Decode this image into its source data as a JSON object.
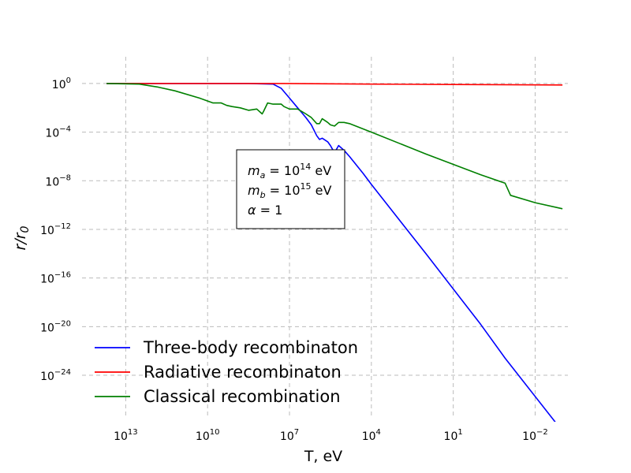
{
  "chart_data": {
    "type": "line",
    "title": "",
    "xlabel": "T, eV",
    "ylabel": "r/r0",
    "x_scale": "log-reversed",
    "y_scale": "log",
    "xlim_log10": [
      14.6,
      -3.2
    ],
    "ylim_log10": [
      -27.5,
      2.2
    ],
    "x_ticks": [
      {
        "log10": 13,
        "base": "10",
        "exp": "13"
      },
      {
        "log10": 10,
        "base": "10",
        "exp": "10"
      },
      {
        "log10": 7,
        "base": "10",
        "exp": "7"
      },
      {
        "log10": 4,
        "base": "10",
        "exp": "4"
      },
      {
        "log10": 1,
        "base": "10",
        "exp": "1"
      },
      {
        "log10": -2,
        "base": "10",
        "exp": "−2"
      }
    ],
    "y_ticks": [
      {
        "log10": 0,
        "base": "10",
        "exp": "0"
      },
      {
        "log10": -4,
        "base": "10",
        "exp": "−4"
      },
      {
        "log10": -8,
        "base": "10",
        "exp": "−8"
      },
      {
        "log10": -12,
        "base": "10",
        "exp": "−12"
      },
      {
        "log10": -16,
        "base": "10",
        "exp": "−16"
      },
      {
        "log10": -20,
        "base": "10",
        "exp": "−20"
      },
      {
        "log10": -24,
        "base": "10",
        "exp": "−24"
      }
    ],
    "grid": true,
    "legend_position": "lower-left",
    "series": [
      {
        "name": "Three-body recombinaton",
        "color": "#0000ff",
        "points_log10": [
          [
            13.7,
            0
          ],
          [
            11,
            0
          ],
          [
            8.5,
            0
          ],
          [
            7.6,
            -0.05
          ],
          [
            7.3,
            -0.4
          ],
          [
            7.0,
            -1.2
          ],
          [
            6.7,
            -2.0
          ],
          [
            6.4,
            -2.8
          ],
          [
            6.2,
            -3.4
          ],
          [
            6.0,
            -4.3
          ],
          [
            5.9,
            -4.6
          ],
          [
            5.8,
            -4.5
          ],
          [
            5.6,
            -4.8
          ],
          [
            5.5,
            -5.1
          ],
          [
            5.35,
            -5.7
          ],
          [
            5.2,
            -5.1
          ],
          [
            5.0,
            -5.5
          ],
          [
            4.8,
            -6.0
          ],
          [
            4.3,
            -7.4
          ],
          [
            4.0,
            -8.3
          ],
          [
            2.0,
            -14.0
          ],
          [
            0.0,
            -19.8
          ],
          [
            -0.9,
            -22.6
          ],
          [
            -3.0,
            -28.6
          ]
        ]
      },
      {
        "name": "Radiative recombinaton",
        "color": "#ff0000",
        "points_log10": [
          [
            13.7,
            0
          ],
          [
            7.2,
            0
          ],
          [
            4.0,
            -0.05
          ],
          [
            1.0,
            -0.08
          ],
          [
            -3.0,
            -0.12
          ]
        ]
      },
      {
        "name": "Classical recombination",
        "color": "#008000",
        "points_log10": [
          [
            13.7,
            0
          ],
          [
            12.5,
            -0.05
          ],
          [
            11.8,
            -0.3
          ],
          [
            11.2,
            -0.6
          ],
          [
            10.3,
            -1.2
          ],
          [
            9.8,
            -1.6
          ],
          [
            9.5,
            -1.6
          ],
          [
            9.3,
            -1.8
          ],
          [
            9.1,
            -1.9
          ],
          [
            8.8,
            -2.0
          ],
          [
            8.5,
            -2.2
          ],
          [
            8.2,
            -2.1
          ],
          [
            8.0,
            -2.5
          ],
          [
            7.95,
            -2.3
          ],
          [
            7.8,
            -1.6
          ],
          [
            7.6,
            -1.7
          ],
          [
            7.3,
            -1.7
          ],
          [
            7.2,
            -1.9
          ],
          [
            7.0,
            -2.1
          ],
          [
            6.7,
            -2.1
          ],
          [
            6.4,
            -2.5
          ],
          [
            6.2,
            -2.8
          ],
          [
            6.0,
            -3.3
          ],
          [
            5.9,
            -3.3
          ],
          [
            5.8,
            -2.9
          ],
          [
            5.6,
            -3.2
          ],
          [
            5.5,
            -3.4
          ],
          [
            5.35,
            -3.5
          ],
          [
            5.2,
            -3.2
          ],
          [
            5.0,
            -3.2
          ],
          [
            4.8,
            -3.3
          ],
          [
            4.0,
            -4.0
          ],
          [
            2.0,
            -5.8
          ],
          [
            0.0,
            -7.5
          ],
          [
            -0.9,
            -8.2
          ],
          [
            -1.1,
            -9.2
          ],
          [
            -2.0,
            -9.8
          ],
          [
            -3.0,
            -10.3
          ]
        ]
      }
    ],
    "annotation": {
      "lines": [
        {
          "var": "m",
          "sub": "a",
          "eq": " = 10",
          "sup": "14",
          "unit": " eV"
        },
        {
          "var": "m",
          "sub": "b",
          "eq": " = 10",
          "sup": "15",
          "unit": " eV"
        },
        {
          "var": "α",
          "sub": "",
          "eq": " = 1",
          "sup": "",
          "unit": ""
        }
      ]
    }
  }
}
